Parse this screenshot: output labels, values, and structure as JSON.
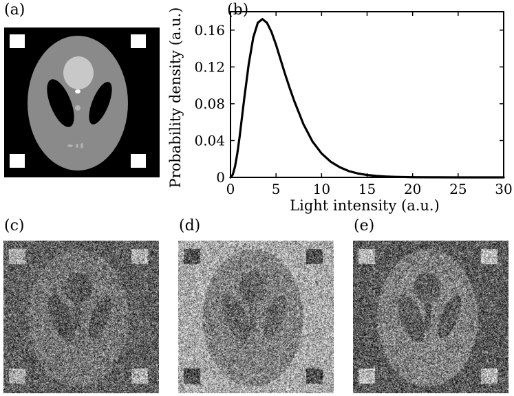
{
  "panels": {
    "a": "(a)",
    "b": "(b)",
    "c": "(c)",
    "d": "(d)",
    "e": "(e)"
  },
  "phantom": {
    "background": "#000000",
    "ellipse_fill": "#8a8a8a",
    "highlight_fill": "#c8c8c8",
    "marker_fill": "#ffffff"
  },
  "speckle": {
    "c": {
      "background_gray": 95,
      "object_gray": 118,
      "lobe_gray": 88,
      "square_gray": 175
    },
    "d": {
      "background_gray": 170,
      "object_gray": 128,
      "lobe_gray": 100,
      "square_gray": 78
    },
    "e": {
      "background_gray": 90,
      "object_gray": 130,
      "lobe_gray": 92,
      "square_gray": 185
    }
  },
  "chart_data": {
    "type": "line",
    "xlabel": "Light intensity (a.u.)",
    "ylabel": "Probability density (a.u.)",
    "xlim": [
      0,
      30
    ],
    "ylim": [
      0,
      0.18
    ],
    "xticks": [
      0,
      5,
      10,
      15,
      20,
      25,
      30
    ],
    "yticks": [
      0,
      0.04,
      0.08,
      0.12,
      0.16
    ],
    "xtick_labels": [
      "0",
      "5",
      "10",
      "15",
      "20",
      "25",
      "30"
    ],
    "ytick_labels": [
      "0",
      "0.04",
      "0.08",
      "0.12",
      "0.16"
    ],
    "grid": false,
    "series": [
      {
        "color": "#000000",
        "x": [
          0,
          0.25,
          0.5,
          0.75,
          1,
          1.5,
          2,
          2.5,
          3,
          3.5,
          4,
          4.5,
          5,
          5.5,
          6,
          6.5,
          7,
          8,
          9,
          10,
          11,
          12,
          13,
          14,
          15,
          16,
          17,
          18,
          19,
          20,
          22,
          25,
          30
        ],
        "y": [
          0,
          0.003,
          0.012,
          0.026,
          0.044,
          0.085,
          0.123,
          0.152,
          0.168,
          0.172,
          0.168,
          0.158,
          0.144,
          0.128,
          0.112,
          0.097,
          0.083,
          0.058,
          0.039,
          0.026,
          0.017,
          0.011,
          0.0068,
          0.0042,
          0.0026,
          0.0016,
          0.001,
          0.0006,
          0.0004,
          0.0002,
          0.0001,
          0,
          0
        ]
      }
    ]
  }
}
